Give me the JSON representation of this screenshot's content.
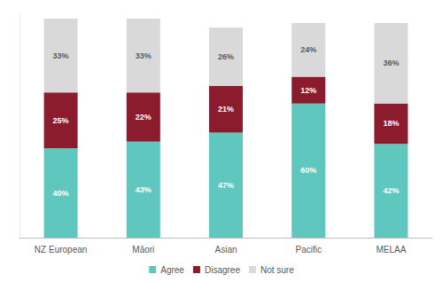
{
  "chart_data": {
    "type": "bar",
    "stacked": true,
    "data_labels": true,
    "tick_labels": "x",
    "grid": false,
    "legend": "bottom",
    "categories": [
      "NZ European",
      "Māori",
      "Asian",
      "Pacific",
      "MELAA"
    ],
    "ylim": [
      0,
      100
    ],
    "series": [
      {
        "name": "Agree",
        "color": "#5fc7bd",
        "values": [
          40,
          43,
          47,
          60,
          42
        ],
        "value_labels": [
          "40%",
          "43%",
          "47%",
          "60%",
          "42%"
        ]
      },
      {
        "name": "Disagree",
        "color": "#8b1c2e",
        "values": [
          25,
          22,
          21,
          12,
          18
        ],
        "value_labels": [
          "25%",
          "22%",
          "21%",
          "12%",
          "18%"
        ]
      },
      {
        "name": "Not sure",
        "color": "#d9d9d9",
        "values": [
          33,
          33,
          26,
          24,
          36
        ],
        "value_labels": [
          "33%",
          "33%",
          "26%",
          "24%",
          "36%"
        ]
      }
    ]
  }
}
